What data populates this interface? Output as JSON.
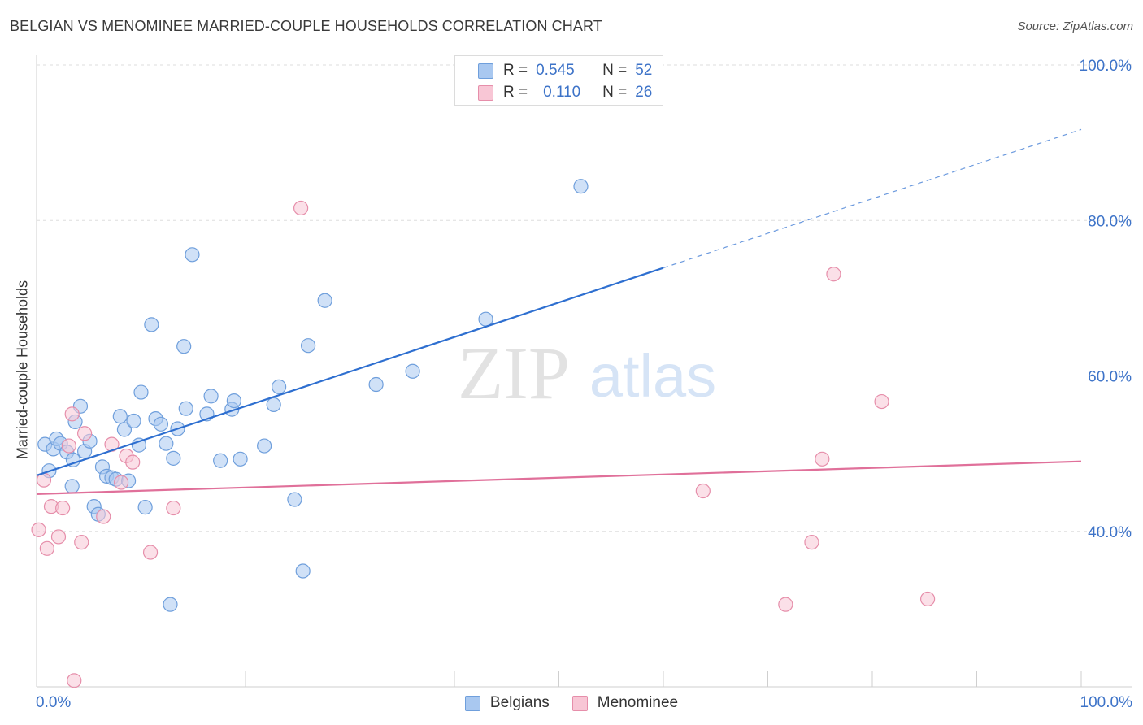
{
  "header": {
    "title": "BELGIAN VS MENOMINEE MARRIED-COUPLE HOUSEHOLDS CORRELATION CHART",
    "source": "Source: ZipAtlas.com"
  },
  "watermark": {
    "zip": "ZIP",
    "atlas": "atlas"
  },
  "legend": {
    "r_label": "R =",
    "n_label": "N =",
    "series": [
      {
        "name": "Belgians",
        "r": "0.545",
        "n": "52"
      },
      {
        "name": "Menominee",
        "r": "0.110",
        "n": "26"
      }
    ]
  },
  "colors": {
    "belgians_fill": "#a9c8f0",
    "belgians_stroke": "#6f9fdc",
    "belgians_line": "#2e6fd0",
    "menominee_fill": "#f8c6d5",
    "menominee_stroke": "#e68eaa",
    "menominee_line": "#e0709a",
    "tick_label": "#3d73c8",
    "grid": "#dddddd"
  },
  "chart_data": {
    "type": "scatter",
    "title": "BELGIAN VS MENOMINEE MARRIED-COUPLE HOUSEHOLDS CORRELATION CHART",
    "xlabel": "",
    "ylabel": "Married-couple Households",
    "xlim": [
      0,
      100
    ],
    "ylim": [
      20,
      100
    ],
    "x_tick_labels": [
      "0.0%",
      "100.0%"
    ],
    "y_ticks": [
      40,
      60,
      80,
      100
    ],
    "y_tick_labels": [
      "40.0%",
      "60.0%",
      "80.0%",
      "100.0%"
    ],
    "legend_position": "top-center",
    "series": [
      {
        "name": "Belgians",
        "r": 0.545,
        "n": 52,
        "trend": {
          "x0": 0,
          "y0": 47.2,
          "x1": 60,
          "y1": 73.9,
          "dashed_to_x": 100,
          "dashed_to_y": 91.7
        },
        "points": [
          [
            1.2,
            47.8
          ],
          [
            0.8,
            51.2
          ],
          [
            1.6,
            50.6
          ],
          [
            1.9,
            51.9
          ],
          [
            2.3,
            51.3
          ],
          [
            2.9,
            50.2
          ],
          [
            3.4,
            45.8
          ],
          [
            3.5,
            49.2
          ],
          [
            3.7,
            54.1
          ],
          [
            4.2,
            56.1
          ],
          [
            4.6,
            50.3
          ],
          [
            5.1,
            51.6
          ],
          [
            5.5,
            43.2
          ],
          [
            5.9,
            42.2
          ],
          [
            6.3,
            48.3
          ],
          [
            6.7,
            47.1
          ],
          [
            7.2,
            46.9
          ],
          [
            7.6,
            46.7
          ],
          [
            8.0,
            54.8
          ],
          [
            8.4,
            53.1
          ],
          [
            8.8,
            46.5
          ],
          [
            9.3,
            54.2
          ],
          [
            9.8,
            51.1
          ],
          [
            10.0,
            57.9
          ],
          [
            10.4,
            43.1
          ],
          [
            11.0,
            66.6
          ],
          [
            11.4,
            54.5
          ],
          [
            11.9,
            53.8
          ],
          [
            12.4,
            51.3
          ],
          [
            12.8,
            30.6
          ],
          [
            13.1,
            49.4
          ],
          [
            13.5,
            53.2
          ],
          [
            14.1,
            63.8
          ],
          [
            14.3,
            55.8
          ],
          [
            14.9,
            75.6
          ],
          [
            16.3,
            55.1
          ],
          [
            16.7,
            57.4
          ],
          [
            17.6,
            49.1
          ],
          [
            18.7,
            55.7
          ],
          [
            18.9,
            56.8
          ],
          [
            19.5,
            49.3
          ],
          [
            21.8,
            51.0
          ],
          [
            22.7,
            56.3
          ],
          [
            23.2,
            58.6
          ],
          [
            24.7,
            44.1
          ],
          [
            25.5,
            34.9
          ],
          [
            26.0,
            63.9
          ],
          [
            27.6,
            69.7
          ],
          [
            32.5,
            58.9
          ],
          [
            36.0,
            60.6
          ],
          [
            43.0,
            67.3
          ],
          [
            52.1,
            84.4
          ]
        ]
      },
      {
        "name": "Menominee",
        "r": 0.11,
        "n": 26,
        "trend": {
          "x0": 0,
          "y0": 44.8,
          "x1": 100,
          "y1": 49.0
        },
        "points": [
          [
            0.2,
            40.2
          ],
          [
            0.7,
            46.6
          ],
          [
            1.0,
            37.8
          ],
          [
            1.4,
            43.2
          ],
          [
            2.1,
            39.3
          ],
          [
            2.5,
            43.0
          ],
          [
            3.1,
            51.0
          ],
          [
            3.4,
            55.1
          ],
          [
            3.6,
            20.8
          ],
          [
            4.3,
            38.6
          ],
          [
            4.6,
            52.6
          ],
          [
            6.4,
            41.9
          ],
          [
            7.2,
            51.2
          ],
          [
            8.1,
            46.3
          ],
          [
            8.6,
            49.7
          ],
          [
            9.2,
            48.9
          ],
          [
            10.9,
            37.3
          ],
          [
            13.1,
            43.0
          ],
          [
            25.3,
            81.6
          ],
          [
            63.8,
            45.2
          ],
          [
            71.7,
            30.6
          ],
          [
            74.2,
            38.6
          ],
          [
            75.2,
            49.3
          ],
          [
            76.3,
            73.1
          ],
          [
            80.9,
            56.7
          ],
          [
            85.3,
            31.3
          ]
        ]
      }
    ]
  }
}
